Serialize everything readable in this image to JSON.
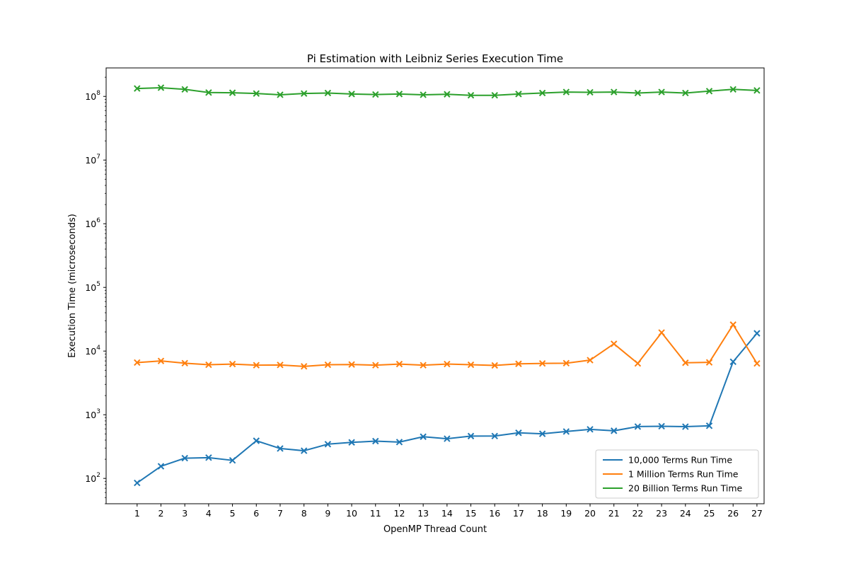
{
  "chart_data": {
    "type": "line",
    "title": "Pi Estimation with Leibniz Series Execution Time",
    "xlabel": "OpenMP Thread Count",
    "ylabel": "Execution Time (microseconds)",
    "yscale": "log",
    "ylim": [
      40,
      280000000
    ],
    "xlim": [
      -0.3,
      27.3
    ],
    "legend_position": "bottom-right",
    "marker": "x",
    "x": [
      1,
      2,
      3,
      4,
      5,
      6,
      7,
      8,
      9,
      10,
      11,
      12,
      13,
      14,
      15,
      16,
      17,
      18,
      19,
      20,
      21,
      22,
      23,
      24,
      25,
      26,
      27
    ],
    "y_ticks": [
      {
        "value": 100,
        "base": "10",
        "exp": "2"
      },
      {
        "value": 1000,
        "base": "10",
        "exp": "3"
      },
      {
        "value": 10000,
        "base": "10",
        "exp": "4"
      },
      {
        "value": 100000,
        "base": "10",
        "exp": "5"
      },
      {
        "value": 1000000,
        "base": "10",
        "exp": "6"
      },
      {
        "value": 10000000,
        "base": "10",
        "exp": "7"
      },
      {
        "value": 100000000,
        "base": "10",
        "exp": "8"
      }
    ],
    "series": [
      {
        "name": "10,000 Terms Run Time",
        "color": "#1f77b4",
        "values": [
          85,
          155,
          208,
          212,
          192,
          390,
          295,
          272,
          345,
          368,
          385,
          372,
          452,
          420,
          462,
          463,
          520,
          502,
          545,
          590,
          560,
          652,
          660,
          650,
          670,
          6800,
          19000
        ]
      },
      {
        "name": "1 Million Terms Run Time",
        "color": "#ff7f0e",
        "values": [
          6600,
          7000,
          6450,
          6100,
          6250,
          6000,
          6050,
          5750,
          6100,
          6150,
          6000,
          6250,
          6000,
          6250,
          6100,
          5950,
          6300,
          6400,
          6450,
          7200,
          13000,
          6400,
          19500,
          6550,
          6650,
          26000,
          6400
        ]
      },
      {
        "name": "20 Billion Terms Run Time",
        "color": "#2ca02c",
        "values": [
          133000000,
          137000000,
          129000000,
          115000000,
          114000000,
          111000000,
          106000000,
          111000000,
          113000000,
          109000000,
          107000000,
          109000000,
          106000000,
          108000000,
          104000000,
          104000000,
          109000000,
          113000000,
          117000000,
          116000000,
          117000000,
          113000000,
          117000000,
          113000000,
          121000000,
          129000000,
          124000000
        ]
      }
    ]
  }
}
